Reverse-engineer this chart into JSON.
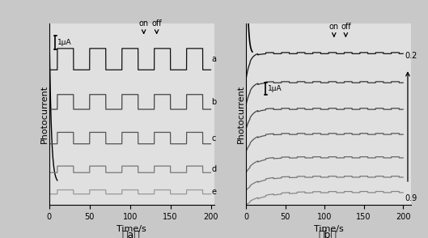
{
  "fig_width": 5.29,
  "fig_height": 2.94,
  "dpi": 100,
  "bg_color": "#c8c8c8",
  "panel_bg": "#e0e0e0",
  "xlabel": "Time/s",
  "ylabel": "Photocurrent",
  "xticks": [
    0,
    50,
    100,
    150,
    200
  ],
  "panel_a_labels": [
    "a",
    "b",
    "c",
    "d",
    "e"
  ],
  "scale_bar_label": "1μA"
}
